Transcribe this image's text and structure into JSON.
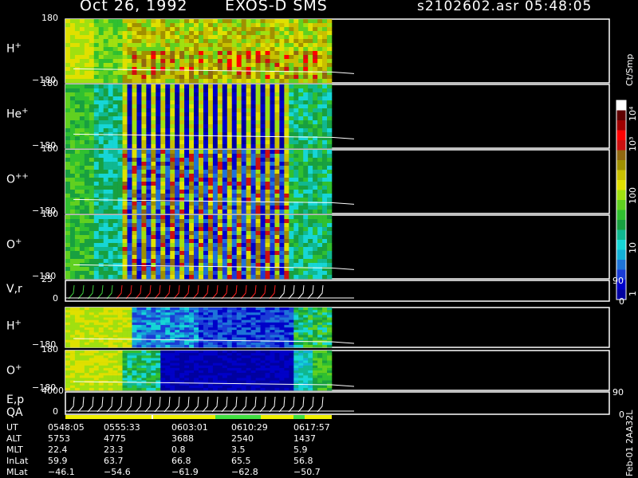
{
  "header": {
    "date": "Oct 26, 1992",
    "instrument": "EXOS-D SMS",
    "file": "s2102602.asr",
    "time": "05:48:05"
  },
  "panels": [
    {
      "label": "H",
      "sup": "+",
      "top_tick": "180",
      "bottom_tick": "−180"
    },
    {
      "label": "He",
      "sup": "+",
      "top_tick": "180",
      "bottom_tick": "−180"
    },
    {
      "label": "O",
      "sup": "++",
      "top_tick": "180",
      "bottom_tick": "−180"
    },
    {
      "label": "O",
      "sup": "+",
      "top_tick": "180",
      "bottom_tick": "−180"
    },
    {
      "label": "V,r",
      "sup": "",
      "top_tick": "25",
      "bottom_tick": "0",
      "right_top": "90",
      "right_bottom": "0"
    },
    {
      "label": "H",
      "sup": "+",
      "top_tick": "",
      "bottom_tick": "−180"
    },
    {
      "label": "O",
      "sup": "+",
      "top_tick": "180",
      "bottom_tick": "−180"
    },
    {
      "label": "E,p",
      "sup": "",
      "top_tick": "4000",
      "bottom_tick": "0",
      "right_top": "90",
      "right_bottom": "0"
    }
  ],
  "qa_label": "QA",
  "colorbar": {
    "unit": "Ct/Smp",
    "labels": [
      "10⁴",
      "10³",
      "100",
      "10",
      "1"
    ]
  },
  "footer_vertical": "Feb-01 2AA32L",
  "chart_data": {
    "type": "heatmap",
    "title": "Oct 26, 1992   EXOS-D SMS",
    "xlabel": "UT",
    "colorscale_unit": "Ct/Smp",
    "color_range": [
      1,
      10000
    ],
    "y_range_pitch": [
      -180,
      180
    ],
    "rows": [
      "UT",
      "ALT",
      "MLT",
      "InLat",
      "MLat"
    ],
    "table": [
      {
        "UT": "0548:05",
        "ALT": "5753",
        "MLT": "22.4",
        "InLat": "59.9",
        "MLat": "−46.1"
      },
      {
        "UT": "0555:33",
        "ALT": "4775",
        "MLT": "23.3",
        "InLat": "63.7",
        "MLat": "−54.6"
      },
      {
        "UT": "0603:01",
        "ALT": "3688",
        "MLT": "0.8",
        "InLat": "66.8",
        "MLat": "−61.9"
      },
      {
        "UT": "0610:29",
        "ALT": "2540",
        "MLT": "3.5",
        "InLat": "65.5",
        "MLat": "−62.8"
      },
      {
        "UT": "0617:57",
        "ALT": "1437",
        "MLT": "5.9",
        "InLat": "56.8",
        "MLat": "−50.7"
      }
    ]
  }
}
